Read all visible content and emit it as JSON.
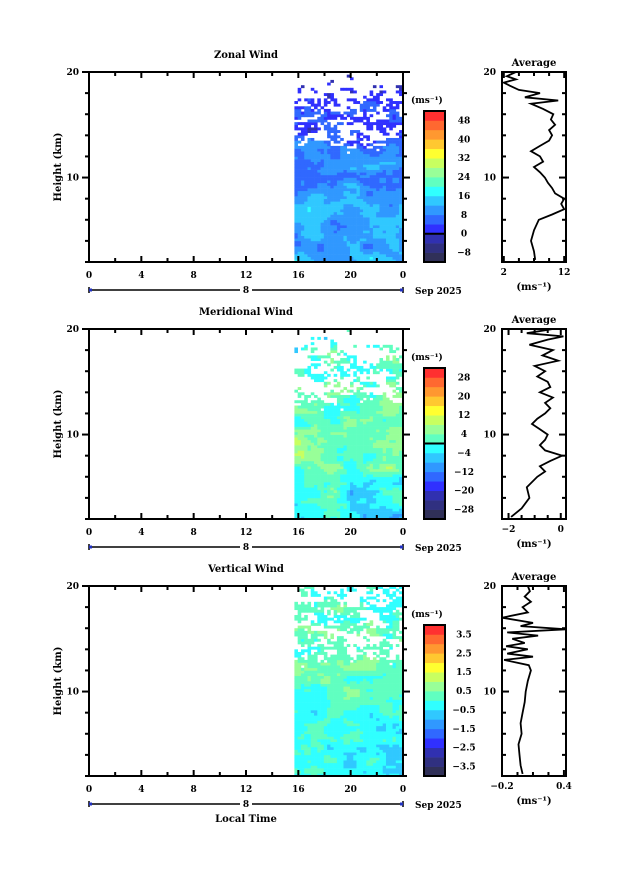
{
  "chart_data": {
    "type": "heatmap",
    "x_axis": {
      "label": "Local Time",
      "range_hours": [
        0,
        24
      ],
      "tick_labels": [
        "0",
        "4",
        "8",
        "12",
        "16",
        "20",
        "0"
      ],
      "day_label": "8",
      "month_label": "Sep 2025"
    },
    "y_axis": {
      "label": "Height (km)",
      "range_km": [
        2,
        20
      ],
      "tick_labels": [
        "10",
        "20"
      ]
    },
    "data_start_hour": 15.7,
    "panels": [
      {
        "title": "Zonal Wind",
        "unit": "(ms⁻¹)",
        "colorbar": {
          "min": -12,
          "step": 4,
          "levels": 16,
          "labels": [
            "48",
            "40",
            "32",
            "24",
            "16",
            "8",
            "0",
            "-8"
          ],
          "label_values": [
            48,
            40,
            32,
            24,
            16,
            8,
            0,
            -8
          ],
          "zero_line": true
        },
        "field": {
          "heights": [
            2,
            4,
            6,
            8,
            10,
            12,
            13,
            14,
            16,
            18,
            19,
            20
          ],
          "mean": [
            12,
            11,
            12,
            11,
            9,
            8,
            6,
            4,
            5,
            2,
            -2,
            0
          ],
          "noise": 4,
          "coverage": [
            0.99,
            0.99,
            0.99,
            0.99,
            0.99,
            0.97,
            0.6,
            0.45,
            0.55,
            0.35,
            0.2,
            0.1
          ]
        },
        "profile": {
          "title": "Average",
          "xlabel": "(ms⁻¹)",
          "xlim": [
            1.7,
            12.3
          ],
          "tick_labels": [
            "2",
            "12"
          ],
          "tick_values": [
            2,
            12
          ],
          "heights": [
            2.2,
            3,
            4,
            5,
            6,
            6.5,
            7,
            7.5,
            8,
            8.5,
            9,
            9.5,
            10,
            10.5,
            11,
            11.5,
            12,
            12.5,
            13,
            13.5,
            14,
            14.5,
            15,
            15.5,
            16,
            16.5,
            17,
            17.3,
            17.6,
            18,
            18.3,
            18.7,
            19,
            19.3,
            19.6,
            20
          ],
          "values": [
            7.2,
            7,
            6.5,
            7,
            7.8,
            10,
            12,
            11.5,
            12,
            10.5,
            10,
            9.3,
            8.8,
            8,
            7,
            8.5,
            8,
            6.5,
            8,
            9.5,
            10,
            9.5,
            10.5,
            9.8,
            10.2,
            8.5,
            6.5,
            11,
            5.5,
            8,
            4.5,
            3,
            2,
            4,
            2.5,
            4
          ]
        }
      },
      {
        "title": "Meridional Wind",
        "unit": "(ms⁻¹)",
        "colorbar": {
          "min": -32,
          "step": 4,
          "levels": 16,
          "labels": [
            "28",
            "20",
            "12",
            "4",
            "-4",
            "-12",
            "-20",
            "-28"
          ],
          "label_values": [
            28,
            20,
            12,
            4,
            -4,
            -12,
            -20,
            -28
          ],
          "zero_line": true
        },
        "field": {
          "heights": [
            2,
            4,
            6,
            8,
            10,
            12,
            13,
            14,
            16,
            18,
            19,
            20
          ],
          "mean": [
            -3,
            -2,
            0,
            4,
            5,
            3,
            2,
            2,
            1,
            1,
            0,
            0
          ],
          "noise": 5,
          "coverage": [
            0.99,
            0.99,
            0.99,
            0.99,
            0.99,
            0.97,
            0.6,
            0.45,
            0.55,
            0.35,
            0.2,
            0.1
          ]
        },
        "profile": {
          "title": "Average",
          "xlabel": "(ms⁻¹)",
          "xlim": [
            -2.25,
            0.2
          ],
          "tick_labels": [
            "-2",
            "0"
          ],
          "tick_values": [
            -2,
            0
          ],
          "heights": [
            2.2,
            3,
            4,
            5,
            6,
            6.5,
            7,
            7.5,
            8,
            8.5,
            9,
            9.5,
            10,
            10.5,
            11,
            11.5,
            12,
            12.5,
            13,
            13.5,
            14,
            14.5,
            15,
            15.5,
            16,
            16.5,
            17,
            17.5,
            18,
            18.5,
            19,
            19.3,
            19.6,
            20
          ],
          "values": [
            -1.9,
            -1.5,
            -1.2,
            -1.3,
            -0.9,
            -0.6,
            -0.8,
            -0.4,
            0.05,
            -0.6,
            -0.8,
            -0.6,
            -0.5,
            -0.8,
            -1.1,
            -0.9,
            -0.6,
            -0.4,
            -0.6,
            -0.3,
            -0.8,
            -0.4,
            -0.5,
            -0.9,
            -0.6,
            -1.0,
            -0.1,
            -0.7,
            -0.3,
            -1.2,
            -0.5,
            0.1,
            -1.3,
            -0.3
          ]
        }
      },
      {
        "title": "Vertical Wind",
        "unit": "(ms⁻¹)",
        "colorbar": {
          "min": -4,
          "step": 0.5,
          "levels": 16,
          "labels": [
            "3.5",
            "2.5",
            "1.5",
            "0.5",
            "-0.5",
            "-1.5",
            "-2.5",
            "-3.5"
          ],
          "label_values": [
            3.5,
            2.5,
            1.5,
            0.5,
            -0.5,
            -1.5,
            -2.5,
            -3.5
          ],
          "zero_line": false
        },
        "field": {
          "heights": [
            2,
            4,
            6,
            8,
            10,
            12,
            13,
            14,
            16,
            18,
            19,
            20
          ],
          "mean": [
            -0.4,
            -0.3,
            -0.2,
            0,
            0.1,
            0.2,
            0.3,
            0.2,
            0.3,
            0.1,
            0,
            0
          ],
          "noise": 0.5,
          "coverage": [
            0.99,
            0.99,
            0.99,
            0.99,
            0.99,
            0.97,
            0.6,
            0.45,
            0.55,
            0.5,
            0.5,
            0.4
          ]
        },
        "profile": {
          "title": "Average",
          "xlabel": "(ms⁻¹)",
          "xlim": [
            -0.2,
            0.42
          ],
          "tick_labels": [
            "-0.2",
            "0.4"
          ],
          "tick_values": [
            -0.2,
            0.4
          ],
          "heights": [
            2.2,
            3,
            4,
            5,
            6,
            7,
            8,
            9,
            10,
            11,
            12,
            12.5,
            13,
            13.3,
            13.6,
            14,
            14.3,
            14.6,
            15,
            15.3,
            15.6,
            15.9,
            16.2,
            16.5,
            17,
            17.5,
            18,
            18.5,
            19,
            19.5,
            20
          ],
          "values": [
            0.0,
            -0.02,
            -0.03,
            -0.04,
            -0.01,
            -0.02,
            0.0,
            0.02,
            0.03,
            0.05,
            0.08,
            0.06,
            -0.18,
            0.1,
            -0.15,
            0.05,
            -0.16,
            0.02,
            -0.1,
            0.15,
            -0.15,
            0.42,
            -0.02,
            0.1,
            -0.2,
            0.05,
            0.0,
            0.08,
            0.02,
            0.07,
            0.05
          ]
        }
      }
    ],
    "colors": [
      "#303058",
      "#303080",
      "#3030b0",
      "#3030ff",
      "#3068ff",
      "#3098ff",
      "#30c8ff",
      "#30ffff",
      "#60ffc0",
      "#98ff98",
      "#c8ff60",
      "#ffff30",
      "#ffc830",
      "#ff9830",
      "#ff6830",
      "#ff3030"
    ]
  }
}
